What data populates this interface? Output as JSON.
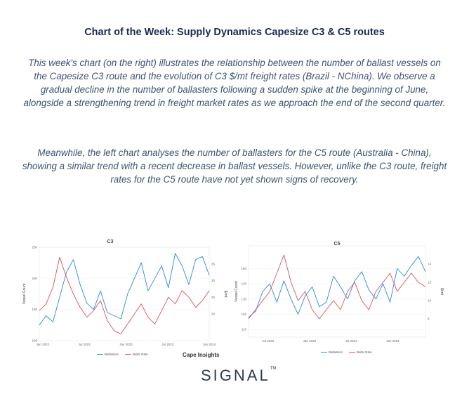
{
  "header": {
    "title": "Chart of the Week: Supply Dynamics Capesize C3 & C5 routes"
  },
  "body": {
    "paragraph1": "This week's chart (on the right) illustrates the relationship between the number of ballast vessels on the Capesize C3 route and the evolution of C3 $/mt freight rates (Brazil - NChina). We observe a gradual decline in the number of ballasters following a sudden spike at the beginning of June, alongside a strengthening trend in freight market rates as we approach the end of the second quarter.",
    "paragraph2": "Meanwhile, the left chart analyses the number of ballasters for the C5 route (Australia - China), showing a similar trend with a recent decrease in ballast vessels. However, unlike the C3 route, freight rates for the C5 route have not yet shown signs of recovery."
  },
  "footer": {
    "source": "Cape Insights",
    "logo": "SIGNAL",
    "logo_mark": "TM"
  },
  "colors": {
    "ballasters": "#2a8ae6",
    "rate": "#d9505a"
  },
  "chart_data": [
    {
      "type": "line",
      "title": "C3",
      "ylabel": "Vessel Count",
      "y2label": "$/mt",
      "ylim": [
        100,
        250
      ],
      "y2lim": [
        12,
        40
      ],
      "yticks": [
        "100",
        "150",
        "200",
        "250"
      ],
      "y2ticks": [
        "20",
        "25",
        "30",
        "35"
      ],
      "xticks": [
        "Jan 2022",
        "Jul 2022",
        "Jan 2023",
        "Jul 2023",
        "Jan 2024"
      ],
      "legend": [
        "Ballasters",
        "Baltic Rate"
      ],
      "legend_position": "bottom",
      "series": [
        {
          "name": "Ballasters",
          "x": [
            0,
            0.04,
            0.08,
            0.12,
            0.16,
            0.2,
            0.24,
            0.28,
            0.32,
            0.36,
            0.4,
            0.44,
            0.48,
            0.52,
            0.56,
            0.6,
            0.64,
            0.68,
            0.72,
            0.76,
            0.8,
            0.84,
            0.88,
            0.92,
            0.96,
            1
          ],
          "values": [
            125,
            140,
            130,
            170,
            210,
            230,
            190,
            160,
            150,
            180,
            145,
            140,
            135,
            175,
            200,
            225,
            180,
            200,
            220,
            185,
            240,
            220,
            190,
            230,
            235,
            205
          ]
        },
        {
          "name": "Baltic Rate",
          "x": [
            0,
            0.04,
            0.08,
            0.12,
            0.16,
            0.2,
            0.24,
            0.28,
            0.32,
            0.36,
            0.4,
            0.44,
            0.48,
            0.52,
            0.56,
            0.6,
            0.64,
            0.68,
            0.72,
            0.76,
            0.8,
            0.84,
            0.88,
            0.92,
            0.96,
            1
          ],
          "values": [
            21,
            23,
            28,
            37,
            31,
            26,
            22,
            19,
            21,
            24,
            18,
            15,
            14,
            17,
            20,
            23,
            19,
            17,
            21,
            25,
            23,
            27,
            25,
            22,
            24,
            27
          ]
        }
      ]
    },
    {
      "type": "line",
      "title": "C5",
      "ylabel": "Vessel Count",
      "y2label": "$/mt",
      "ylim": [
        105,
        165
      ],
      "y2lim": [
        6,
        16
      ],
      "yticks": [
        "110",
        "120",
        "130",
        "140",
        "150"
      ],
      "y2ticks": [
        "8",
        "10",
        "12",
        "14"
      ],
      "xticks": [
        "Jul 2022",
        "Jan 2023",
        "Jul 2023",
        "Jan 2024"
      ],
      "legend": [
        "Ballasters",
        "Baltic Rate"
      ],
      "legend_position": "bottom",
      "series": [
        {
          "name": "Ballasters",
          "x": [
            0,
            0.04,
            0.08,
            0.12,
            0.16,
            0.2,
            0.24,
            0.28,
            0.32,
            0.36,
            0.4,
            0.44,
            0.48,
            0.52,
            0.56,
            0.6,
            0.64,
            0.68,
            0.72,
            0.76,
            0.8,
            0.84,
            0.88,
            0.92,
            0.96,
            1
          ],
          "values": [
            118,
            122,
            135,
            140,
            128,
            142,
            130,
            120,
            132,
            138,
            125,
            128,
            145,
            138,
            130,
            142,
            148,
            136,
            130,
            140,
            128,
            150,
            145,
            152,
            158,
            148
          ]
        },
        {
          "name": "Baltic Rate",
          "x": [
            0,
            0.04,
            0.08,
            0.12,
            0.16,
            0.2,
            0.24,
            0.28,
            0.32,
            0.36,
            0.4,
            0.44,
            0.48,
            0.52,
            0.56,
            0.6,
            0.64,
            0.68,
            0.72,
            0.76,
            0.8,
            0.84,
            0.88,
            0.92,
            0.96,
            1
          ],
          "values": [
            8,
            9,
            10,
            11,
            13,
            15,
            12,
            10,
            11,
            9,
            8,
            9,
            10,
            9,
            11,
            12,
            10,
            9,
            11,
            12,
            13,
            11,
            12,
            13,
            12,
            11.5
          ]
        }
      ]
    }
  ]
}
